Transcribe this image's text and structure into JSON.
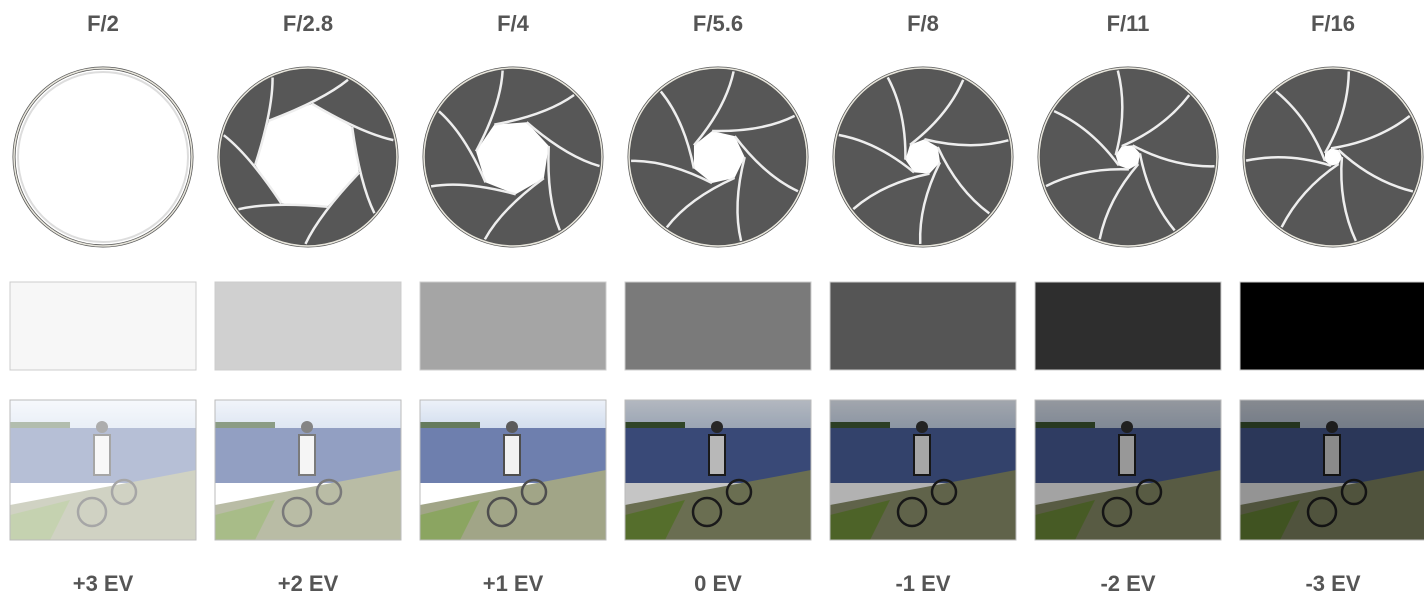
{
  "columns": [
    {
      "aperture": "F/2",
      "exposure": "+3 EV"
    },
    {
      "aperture": "F/2.8",
      "exposure": "+2 EV"
    },
    {
      "aperture": "F/4",
      "exposure": "+1 EV"
    },
    {
      "aperture": "F/5.6",
      "exposure": "0 EV"
    },
    {
      "aperture": "F/8",
      "exposure": "-1 EV"
    },
    {
      "aperture": "F/11",
      "exposure": "-2 EV"
    },
    {
      "aperture": "F/16",
      "exposure": "-3 EV"
    }
  ]
}
